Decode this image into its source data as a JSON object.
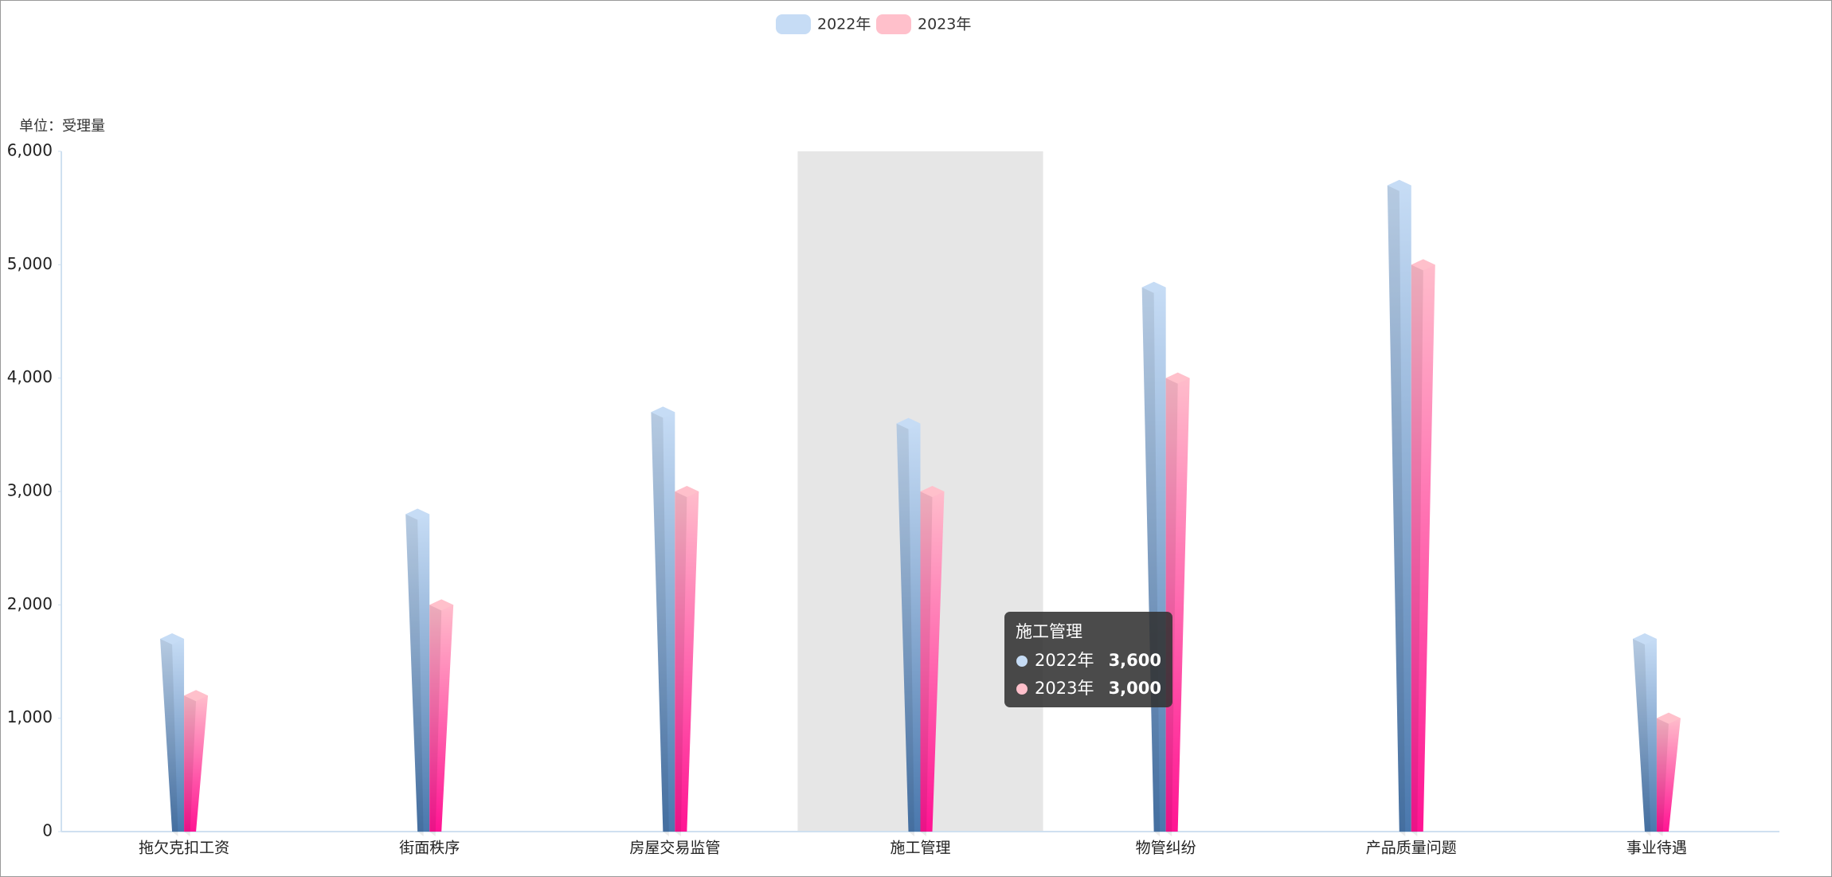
{
  "chart_data": {
    "type": "bar3d",
    "y_axis_label": "单位：受理量",
    "categories": [
      "拖欠克扣工资",
      "街面秩序",
      "房屋交易监管",
      "施工管理",
      "物管纠纷",
      "产品质量问题",
      "事业待遇"
    ],
    "series": [
      {
        "name": "2022年",
        "color": "#c6dcf5",
        "gradient": [
          "#c6dcf5",
          "#4a78ad"
        ],
        "values": [
          1700,
          2800,
          3700,
          3600,
          4800,
          5700,
          1700
        ]
      },
      {
        "name": "2023年",
        "color": "#ffc0cb",
        "gradient": [
          "#ffbccb",
          "#ff1493"
        ],
        "values": [
          1200,
          2000,
          3000,
          3000,
          4000,
          5000,
          1000
        ]
      }
    ],
    "ylim": [
      0,
      6000
    ],
    "yticks": [
      0,
      {
        "value": 1000,
        "label": "1,000"
      },
      {
        "value": 2000,
        "label": "2,000"
      },
      {
        "value": 3000,
        "label": "3,000"
      },
      {
        "value": 4000,
        "label": "4,000"
      },
      {
        "value": 5000,
        "label": "5,000"
      },
      {
        "value": 6000,
        "label": "6,000"
      }
    ],
    "legend": "top",
    "tooltip": {
      "title": "施工管理",
      "rows": [
        {
          "name": "2022年",
          "value": "3,600"
        },
        {
          "name": "2023年",
          "value": "3,000"
        }
      ]
    }
  }
}
